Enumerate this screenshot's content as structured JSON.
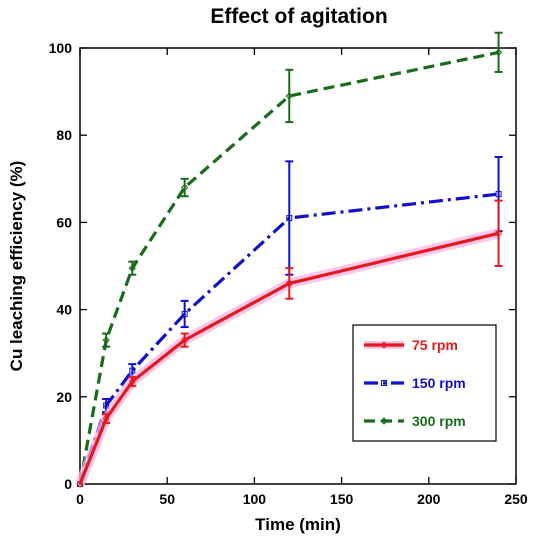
{
  "chart_data": {
    "type": "line",
    "title": "Effect of agitation",
    "xlabel": "Time (min)",
    "ylabel": "Cu leaching efficiency (%)",
    "xlim": [
      0,
      250
    ],
    "ylim": [
      0,
      100
    ],
    "xticks": [
      0,
      50,
      100,
      150,
      200,
      250
    ],
    "yticks": [
      0,
      20,
      40,
      60,
      80,
      100
    ],
    "grid": false,
    "legend_position": "lower-right",
    "x": [
      0,
      15,
      30,
      60,
      120,
      240
    ],
    "series": [
      {
        "name": "75 rpm",
        "color": "#e31a1c",
        "shadow_color": "#ffb3e6",
        "line_style": "solid",
        "marker": "circle",
        "values": [
          0,
          15,
          23.5,
          33,
          46,
          57.5
        ],
        "errors": [
          0,
          1,
          1,
          1.5,
          3.5,
          7.5
        ]
      },
      {
        "name": "150 rpm",
        "color": "#1010cc",
        "line_style": "dashdot",
        "marker": "square",
        "values": [
          0,
          18,
          26,
          39,
          61,
          66.5
        ],
        "errors": [
          0,
          1.5,
          1.5,
          3,
          13,
          8.5
        ]
      },
      {
        "name": "300 rpm",
        "color": "#1a6b1a",
        "line_style": "dashed",
        "marker": "diamond",
        "values": [
          0,
          33,
          49.5,
          68,
          89,
          99
        ],
        "errors": [
          0,
          1.5,
          1.5,
          2,
          6,
          4.5
        ]
      }
    ]
  }
}
